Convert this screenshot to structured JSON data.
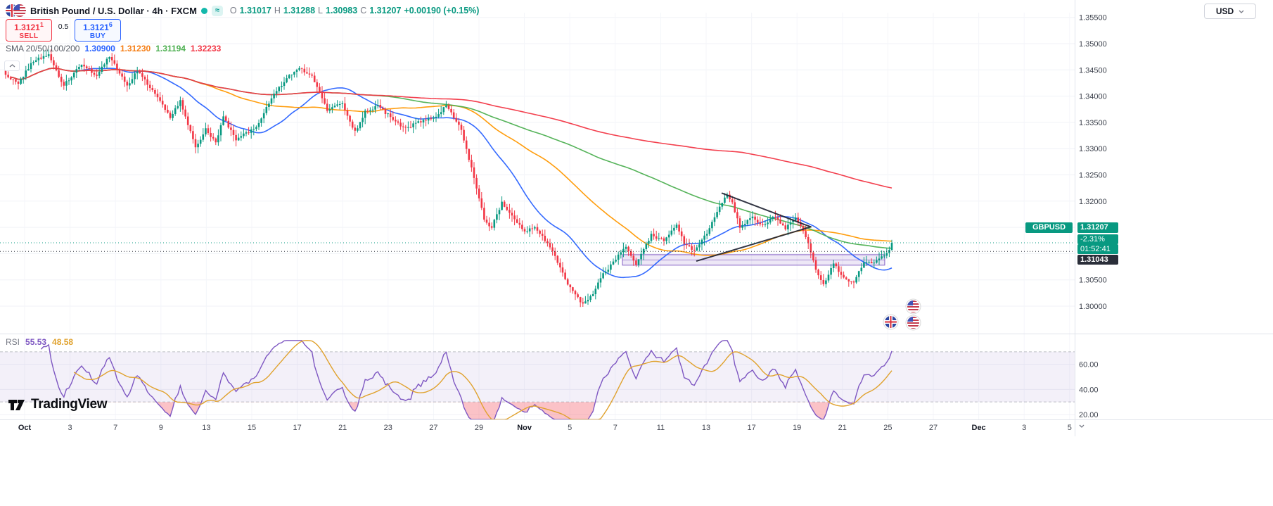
{
  "header": {
    "symbol_title": "British Pound / U.S. Dollar · 4h · FXCM",
    "market_icons": {
      "approx": "≈"
    },
    "ohlc": {
      "o_label": "O",
      "o": "1.31017",
      "h_label": "H",
      "h": "1.31288",
      "l_label": "L",
      "l": "1.30983",
      "c_label": "C",
      "c": "1.31207",
      "change": "+0.00190 (+0.15%)"
    },
    "trade": {
      "sell_price": "1.3121",
      "sell_sup": "1",
      "sell_label": "SELL",
      "spread": "0.5",
      "buy_price": "1.3121",
      "buy_sup": "6",
      "buy_label": "BUY"
    },
    "sma": {
      "label": "SMA 20/50/100/200",
      "values": [
        {
          "text": "1.30900",
          "color": "#2962ff"
        },
        {
          "text": "1.31230",
          "color": "#f57f17"
        },
        {
          "text": "1.31194",
          "color": "#4caf50"
        },
        {
          "text": "1.32233",
          "color": "#f23645"
        }
      ]
    }
  },
  "top_right": {
    "currency": "USD"
  },
  "axis_badges": {
    "symbol": "GBPUSD",
    "price": "1.31207",
    "change_pct": "-2.31%",
    "countdown": "01:52:41",
    "level": "1.31043"
  },
  "rsi_legend": {
    "label": "RSI",
    "value": "55.53",
    "ma_value": "48.58",
    "value_color": "#7e57c2",
    "ma_color": "#e0a22e"
  },
  "logo_text": "TradingView",
  "chart_data": {
    "type": "candlestick",
    "symbol": "GBPUSD",
    "timeframe": "4h",
    "title": "British Pound / U.S. Dollar, 4h, FXCM",
    "ohlc_last": {
      "open": 1.31017,
      "high": 1.31288,
      "low": 1.30983,
      "close": 1.31207
    },
    "ylim": [
      1.2965,
      1.3585
    ],
    "y_ticks": [
      "1.35500",
      "1.35000",
      "1.34500",
      "1.34000",
      "1.33500",
      "1.33000",
      "1.32500",
      "1.32000",
      "1.30500",
      "1.30000"
    ],
    "x_ticks": [
      {
        "label": "Oct",
        "major": true
      },
      {
        "label": "3"
      },
      {
        "label": "7"
      },
      {
        "label": "9"
      },
      {
        "label": "13"
      },
      {
        "label": "15"
      },
      {
        "label": "17"
      },
      {
        "label": "21"
      },
      {
        "label": "23"
      },
      {
        "label": "27"
      },
      {
        "label": "29"
      },
      {
        "label": "Nov",
        "major": true
      },
      {
        "label": "5"
      },
      {
        "label": "7"
      },
      {
        "label": "11"
      },
      {
        "label": "13"
      },
      {
        "label": "17"
      },
      {
        "label": "19"
      },
      {
        "label": "21"
      },
      {
        "label": "25"
      },
      {
        "label": "27"
      },
      {
        "label": "Dec",
        "major": true
      },
      {
        "label": "3"
      },
      {
        "label": "5"
      }
    ],
    "n_candles": 351,
    "up_color": "#089981",
    "down_color": "#f23645",
    "price_path": [
      [
        0,
        1.344
      ],
      [
        5,
        1.3425
      ],
      [
        11,
        1.3468
      ],
      [
        17,
        1.3478
      ],
      [
        23,
        1.342
      ],
      [
        30,
        1.3462
      ],
      [
        36,
        1.3438
      ],
      [
        41,
        1.3476
      ],
      [
        48,
        1.342
      ],
      [
        52,
        1.3448
      ],
      [
        58,
        1.3412
      ],
      [
        65,
        1.3358
      ],
      [
        69,
        1.339
      ],
      [
        75,
        1.3302
      ],
      [
        79,
        1.3336
      ],
      [
        83,
        1.331
      ],
      [
        86,
        1.3364
      ],
      [
        88,
        1.3342
      ],
      [
        91,
        1.3314
      ],
      [
        95,
        1.333
      ],
      [
        99,
        1.334
      ],
      [
        105,
        1.3396
      ],
      [
        112,
        1.344
      ],
      [
        116,
        1.3452
      ],
      [
        121,
        1.3438
      ],
      [
        127,
        1.3374
      ],
      [
        133,
        1.3386
      ],
      [
        138,
        1.3332
      ],
      [
        142,
        1.337
      ],
      [
        147,
        1.3382
      ],
      [
        152,
        1.336
      ],
      [
        158,
        1.3338
      ],
      [
        164,
        1.3352
      ],
      [
        170,
        1.336
      ],
      [
        174,
        1.3384
      ],
      [
        180,
        1.3334
      ],
      [
        185,
        1.3245
      ],
      [
        189,
        1.3165
      ],
      [
        192,
        1.315
      ],
      [
        196,
        1.3196
      ],
      [
        200,
        1.3172
      ],
      [
        205,
        1.314
      ],
      [
        209,
        1.3152
      ],
      [
        214,
        1.312
      ],
      [
        218,
        1.3084
      ],
      [
        222,
        1.3042
      ],
      [
        228,
        1.3002
      ],
      [
        231,
        1.3016
      ],
      [
        236,
        1.306
      ],
      [
        241,
        1.309
      ],
      [
        245,
        1.3112
      ],
      [
        249,
        1.308
      ],
      [
        255,
        1.3135
      ],
      [
        260,
        1.3126
      ],
      [
        265,
        1.3155
      ],
      [
        268,
        1.312
      ],
      [
        272,
        1.3104
      ],
      [
        277,
        1.314
      ],
      [
        283,
        1.3196
      ],
      [
        285,
        1.3212
      ],
      [
        287,
        1.3195
      ],
      [
        290,
        1.315
      ],
      [
        295,
        1.317
      ],
      [
        299,
        1.3152
      ],
      [
        304,
        1.3172
      ],
      [
        308,
        1.3148
      ],
      [
        312,
        1.3166
      ],
      [
        316,
        1.3134
      ],
      [
        320,
        1.307
      ],
      [
        323,
        1.304
      ],
      [
        327,
        1.308
      ],
      [
        331,
        1.3054
      ],
      [
        335,
        1.3044
      ],
      [
        339,
        1.3084
      ],
      [
        343,
        1.3082
      ],
      [
        346,
        1.3094
      ],
      [
        349,
        1.3106
      ],
      [
        350,
        1.3121
      ]
    ],
    "sma": {
      "windows": [
        29,
        73,
        146,
        292
      ],
      "colors": [
        "#2962ff",
        "#ff9800",
        "#4caf50",
        "#f23645"
      ],
      "values": [
        1.309,
        1.3123,
        1.31194,
        1.32233
      ]
    },
    "current_price": 1.31207,
    "level_price": 1.31043,
    "support_zone": {
      "i1": 243.6,
      "i2": 347.2,
      "p_top": 1.3098,
      "p_bottom": 1.3078,
      "color": "#673ab7"
    },
    "trendlines": [
      {
        "i1": 283,
        "p1": 1.3215,
        "i2": 318,
        "p2": 1.3151
      },
      {
        "i1": 273,
        "p1": 1.3086,
        "i2": 318,
        "p2": 1.3151
      }
    ],
    "rsi": {
      "period": 14,
      "ma_period": 14,
      "last_value": 55.53,
      "ma_last_value": 48.58,
      "color": "#7e57c2",
      "ma_color": "#e0a22e",
      "band": [
        30,
        70
      ],
      "ticks": [
        "60.00",
        "40.00",
        "20.00"
      ]
    }
  }
}
